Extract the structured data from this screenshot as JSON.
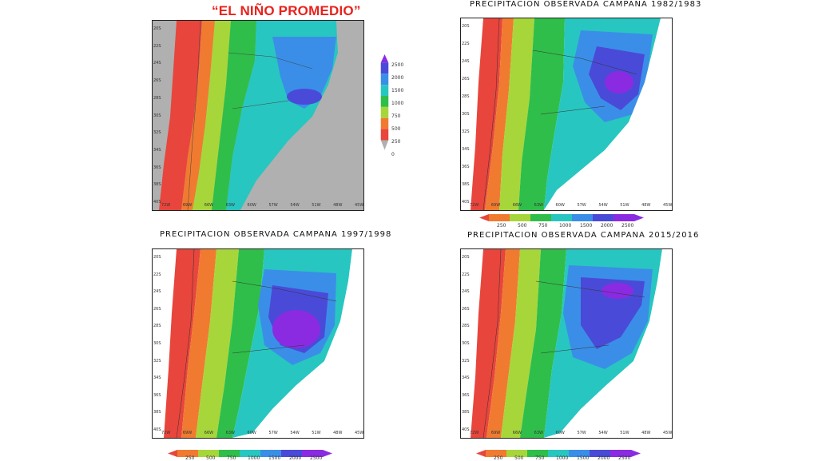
{
  "title": "“EL NIÑO PROMEDIO”",
  "panels": [
    {
      "title": ""
    },
    {
      "title": "PRECIPITACION OBSERVADA CAMPANA 1982/1983"
    },
    {
      "title": "PRECIPITACION OBSERVADA CAMPANA 1997/1998"
    },
    {
      "title": "PRECIPITACION OBSERVADA CAMPANA 2015/2016"
    }
  ],
  "lat_ticks": [
    "20S",
    "22S",
    "24S",
    "26S",
    "28S",
    "30S",
    "32S",
    "34S",
    "36S",
    "38S",
    "40S"
  ],
  "lon_ticks": [
    "72W",
    "69W",
    "66W",
    "63W",
    "60W",
    "57W",
    "54W",
    "51W",
    "48W",
    "45W"
  ],
  "legend_values": [
    "0",
    "250",
    "500",
    "750",
    "1000",
    "1500",
    "2000",
    "2500"
  ],
  "legend_colors": [
    "#e8453c",
    "#f07b30",
    "#a7d63a",
    "#2fbe4a",
    "#28c6c0",
    "#3a8ee8",
    "#4a4ad8",
    "#8a2be2"
  ],
  "land_mask_color": "#b0b0b0"
}
